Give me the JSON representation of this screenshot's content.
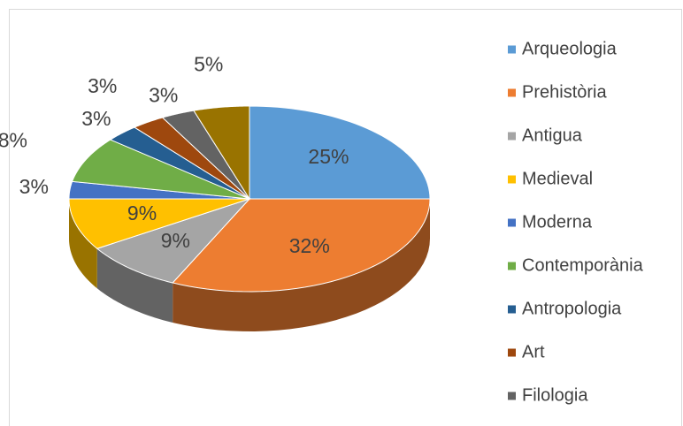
{
  "chart_data": {
    "type": "pie",
    "categories": [
      "Arqueologia",
      "Prehistòria",
      "Antigua",
      "Medieval",
      "Moderna",
      "Contemporània",
      "Antropologia",
      "Art",
      "Filologia",
      null
    ],
    "values": [
      25,
      32,
      9,
      9,
      3,
      8,
      3,
      3,
      3,
      5
    ],
    "value_labels": [
      "25%",
      "32%",
      "9%",
      "9%",
      "3%",
      "8%",
      "3%",
      "3%",
      "3%",
      "5%"
    ],
    "colors": [
      "#5b9bd5",
      "#ed7d31",
      "#a5a5a5",
      "#ffc000",
      "#4472c4",
      "#70ad47",
      "#255e91",
      "#9e480e",
      "#636363",
      "#997300"
    ]
  }
}
